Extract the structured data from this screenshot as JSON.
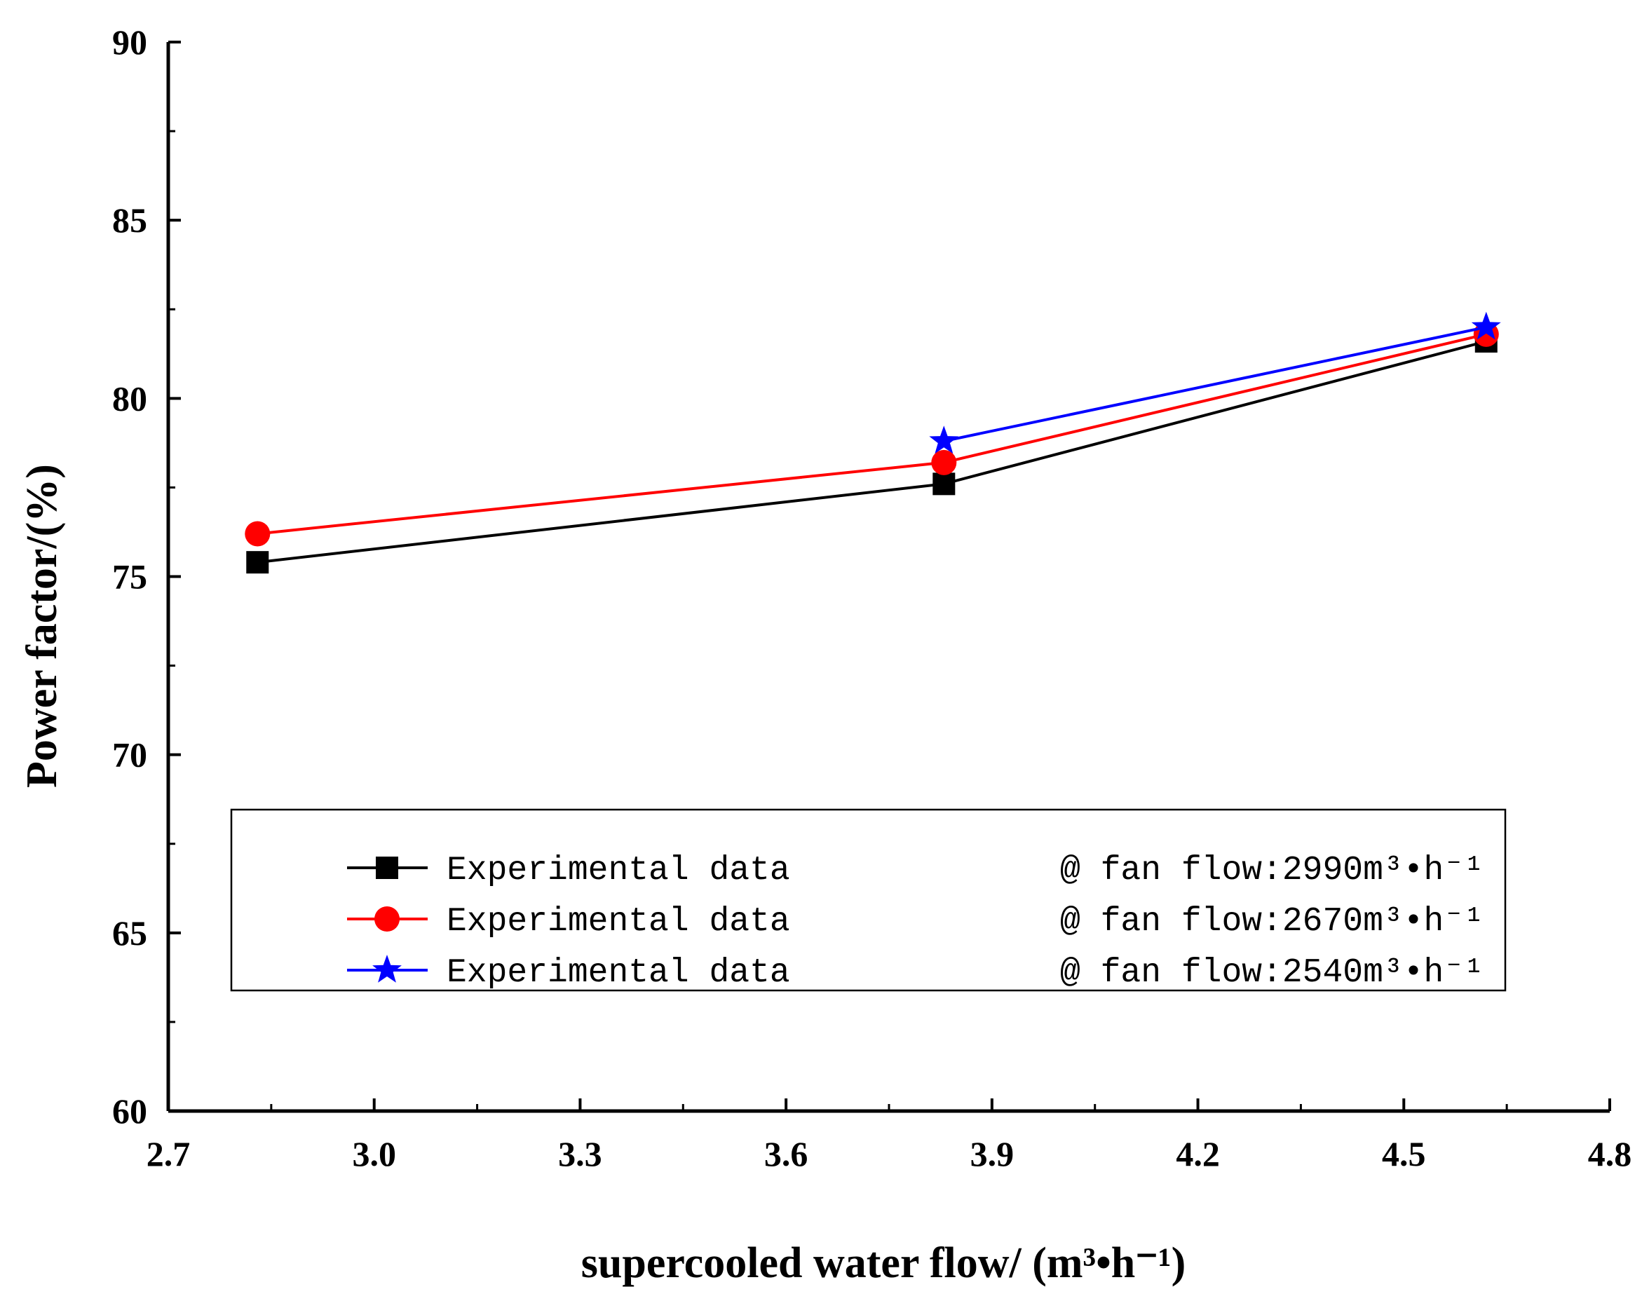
{
  "chart_data": {
    "type": "line",
    "xlabel": "supercooled water flow/ (m³•h⁻¹)",
    "ylabel": "Power factor/(%)",
    "xlim": [
      2.7,
      4.8
    ],
    "ylim": [
      60,
      90
    ],
    "xticks": [
      "2.7",
      "3.0",
      "3.3",
      "3.6",
      "3.9",
      "4.2",
      "4.5",
      "4.8"
    ],
    "yticks": [
      "60",
      "65",
      "70",
      "75",
      "80",
      "85",
      "90"
    ],
    "legend_position": "lower-center",
    "series": [
      {
        "name": "Experimental data",
        "condition": "@ fan flow:2990m³•h⁻¹",
        "color": "#000000",
        "marker": "square",
        "x": [
          2.83,
          3.83,
          4.62
        ],
        "y": [
          75.4,
          77.6,
          81.6
        ]
      },
      {
        "name": "Experimental data",
        "condition": "@ fan flow:2670m³•h⁻¹",
        "color": "#ff0000",
        "marker": "circle",
        "x": [
          2.83,
          3.83,
          4.62
        ],
        "y": [
          76.2,
          78.2,
          81.8
        ]
      },
      {
        "name": "Experimental data",
        "condition": "@ fan flow:2540m³•h⁻¹",
        "color": "#0000ff",
        "marker": "star",
        "x": [
          3.83,
          4.62
        ],
        "y": [
          78.8,
          82.0
        ]
      }
    ]
  }
}
